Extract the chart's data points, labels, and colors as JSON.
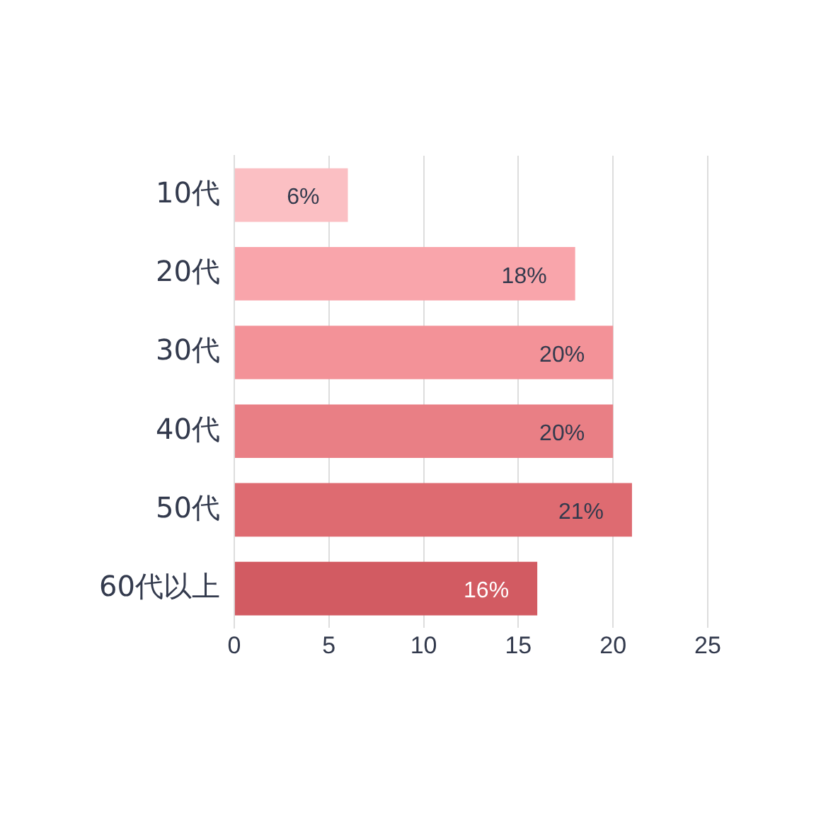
{
  "chart_data": {
    "type": "bar",
    "orientation": "horizontal",
    "categories": [
      "10代",
      "20代",
      "30代",
      "40代",
      "50代",
      "60代以上"
    ],
    "values": [
      6,
      18,
      20,
      20,
      21,
      16
    ],
    "colors": [
      "#fbbfc3",
      "#f9a5ab",
      "#f39298",
      "#e97f85",
      "#de6b71",
      "#d25b62"
    ],
    "value_labels": [
      "6%",
      "18%",
      "20%",
      "20%",
      "21%",
      "16%"
    ],
    "xlim": [
      0,
      25
    ],
    "xticks": [
      0,
      5,
      10,
      15,
      20,
      25
    ],
    "grid": "x",
    "legend": false
  }
}
